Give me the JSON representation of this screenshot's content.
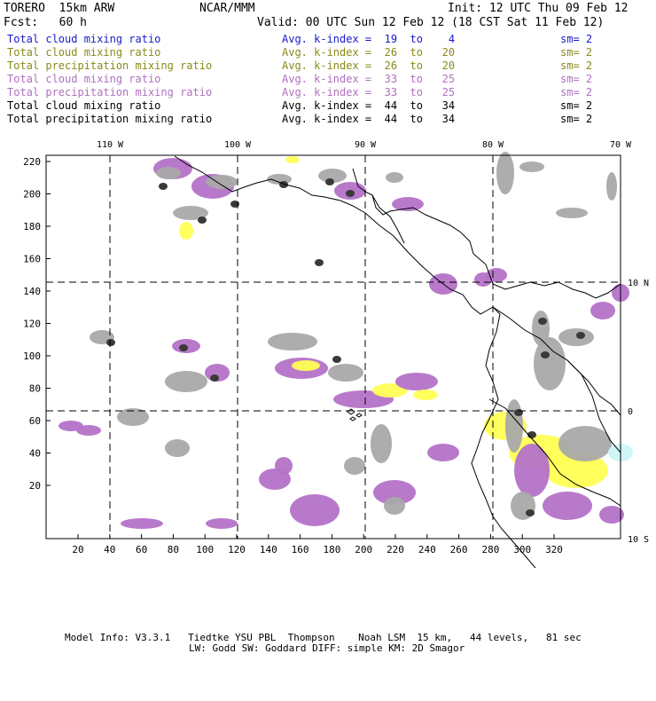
{
  "header": {
    "model": "TORERO  15km ARW",
    "center": "NCAR/MMM",
    "init": "Init: 12 UTC Thu 09 Feb 12",
    "fcst": "Fcst:   60 h",
    "valid": "Valid: 00 UTC Sun 12 Feb 12 (18 CST Sat 11 Feb 12)"
  },
  "legend": [
    {
      "field": "Total cloud mixing ratio",
      "kindex": "Avg. k-index =  19  to    4",
      "sm": "sm= 2",
      "color": "#1a1acc"
    },
    {
      "field": "Total cloud mixing ratio",
      "kindex": "Avg. k-index =  26  to   20",
      "sm": "sm= 2",
      "color": "#8a8a1a"
    },
    {
      "field": "Total precipitation mixing ratio",
      "kindex": "Avg. k-index =  26  to   20",
      "sm": "sm= 2",
      "color": "#8a8a1a"
    },
    {
      "field": "Total cloud mixing ratio",
      "kindex": "Avg. k-index =  33  to   25",
      "sm": "sm= 2",
      "color": "#b070c0"
    },
    {
      "field": "Total precipitation mixing ratio",
      "kindex": "Avg. k-index =  33  to   25",
      "sm": "sm= 2",
      "color": "#b070c0"
    },
    {
      "field": "Total cloud mixing ratio",
      "kindex": "Avg. k-index =  44  to   34",
      "sm": "sm= 2",
      "color": "#000000"
    },
    {
      "field": "Total precipitation mixing ratio",
      "kindex": "Avg. k-index =  44  to   34",
      "sm": "sm= 2",
      "color": "#000000"
    }
  ],
  "map": {
    "lon_labels": [
      "110 W",
      "100 W",
      "90 W",
      "80 W",
      "70 W"
    ],
    "lat_labels": [
      "10 N",
      "0",
      "10 S"
    ],
    "y_ticks": [
      "220",
      "200",
      "180",
      "160",
      "140",
      "120",
      "100",
      "80",
      "60",
      "40",
      "20"
    ],
    "x_ticks": [
      "20",
      "40",
      "60",
      "80",
      "100",
      "120",
      "140",
      "160",
      "180",
      "200",
      "220",
      "240",
      "260",
      "280",
      "300",
      "320"
    ],
    "colors": {
      "gray": "#a9a9a9",
      "dark": "#3a3a3a",
      "purple": "#b472c8",
      "yellow": "#ffff55",
      "cyan": "#ccf5f5",
      "coast": "#000000"
    }
  },
  "footer": {
    "line1": "Model Info: V3.3.1   Tiedtke YSU PBL  Thompson    Noah LSM  15 km,   44 levels,   81 sec",
    "line2": "LW: Godd SW: Goddard DIFF: simple KM: 2D Smagor"
  }
}
